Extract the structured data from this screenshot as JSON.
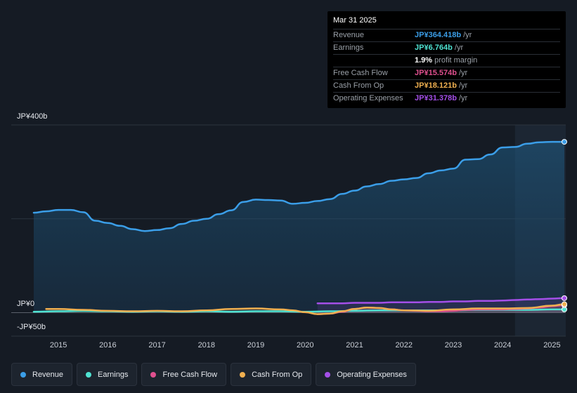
{
  "tooltip": {
    "date": "Mar 31 2025",
    "rows": [
      {
        "label": "Revenue",
        "value": "JP¥364.418b",
        "unit": "/yr",
        "color": "#3b9ee8"
      },
      {
        "label": "Earnings",
        "value": "JP¥6.764b",
        "unit": "/yr",
        "color": "#4fe3d2"
      },
      {
        "label": "",
        "value": "1.9%",
        "unit": "profit margin",
        "color": "#ffffff"
      },
      {
        "label": "Free Cash Flow",
        "value": "JP¥15.574b",
        "unit": "/yr",
        "color": "#e0508f"
      },
      {
        "label": "Cash From Op",
        "value": "JP¥18.121b",
        "unit": "/yr",
        "color": "#f0b050"
      },
      {
        "label": "Operating Expenses",
        "value": "JP¥31.378b",
        "unit": "/yr",
        "color": "#a44fe8"
      }
    ]
  },
  "legend": [
    {
      "label": "Revenue",
      "color": "#3b9ee8"
    },
    {
      "label": "Earnings",
      "color": "#4fe3d2"
    },
    {
      "label": "Free Cash Flow",
      "color": "#e0508f"
    },
    {
      "label": "Cash From Op",
      "color": "#f0b050"
    },
    {
      "label": "Operating Expenses",
      "color": "#a44fe8"
    }
  ],
  "chart_data": {
    "type": "line",
    "ylim": [
      -50,
      400
    ],
    "y_tick_labels": {
      "top": "JP¥400b",
      "zero": "JP¥0",
      "bottom": "-JP¥50b"
    },
    "x_tick_labels": [
      "2015",
      "2016",
      "2017",
      "2018",
      "2019",
      "2020",
      "2021",
      "2022",
      "2023",
      "2024",
      "2025"
    ],
    "x_tick_values": [
      2015,
      2016,
      2017,
      2018,
      2019,
      2020,
      2021,
      2022,
      2023,
      2024,
      2025
    ],
    "xlim": [
      2014.5,
      2025.25
    ],
    "forecast_start": 2024.25,
    "series": [
      {
        "name": "Revenue",
        "color": "#3b9ee8",
        "x": [
          2014.5,
          2014.75,
          2015.0,
          2015.25,
          2015.5,
          2015.75,
          2016.0,
          2016.25,
          2016.5,
          2016.75,
          2017.0,
          2017.25,
          2017.5,
          2017.75,
          2018.0,
          2018.25,
          2018.5,
          2018.75,
          2019.0,
          2019.25,
          2019.5,
          2019.75,
          2020.0,
          2020.25,
          2020.5,
          2020.75,
          2021.0,
          2021.25,
          2021.5,
          2021.75,
          2022.0,
          2022.25,
          2022.5,
          2022.75,
          2023.0,
          2023.25,
          2023.5,
          2023.75,
          2024.0,
          2024.25,
          2024.5,
          2024.75,
          2025.0,
          2025.25
        ],
        "values": [
          213,
          216,
          219,
          219,
          214,
          196,
          191,
          185,
          178,
          174,
          176,
          180,
          189,
          196,
          200,
          210,
          218,
          236,
          241,
          240,
          239,
          232,
          234,
          238,
          242,
          253,
          260,
          269,
          274,
          281,
          284,
          287,
          297,
          303,
          307,
          326,
          327,
          337,
          352,
          353,
          360,
          363,
          364,
          364
        ]
      },
      {
        "name": "Earnings",
        "color": "#4fe3d2",
        "x": [
          2014.5,
          2015.0,
          2015.5,
          2016.0,
          2016.5,
          2017.0,
          2017.5,
          2018.0,
          2018.5,
          2019.0,
          2019.5,
          2020.0,
          2020.5,
          2021.0,
          2021.5,
          2022.0,
          2022.5,
          2023.0,
          2023.5,
          2024.0,
          2024.5,
          2025.0,
          2025.25
        ],
        "values": [
          2,
          3,
          4,
          3,
          2,
          3,
          2,
          3,
          2,
          3,
          3,
          2,
          3,
          4,
          5,
          5,
          5,
          5,
          6,
          6,
          6,
          7,
          7
        ]
      },
      {
        "name": "Free Cash Flow",
        "color": "#e0508f",
        "x": [
          2020.25,
          2020.5,
          2020.75,
          2021.0,
          2021.25,
          2021.5,
          2021.75,
          2022.0,
          2022.25,
          2022.5,
          2022.75,
          2023.0,
          2023.25,
          2023.5,
          2023.75,
          2024.0,
          2024.25,
          2024.5,
          2024.75,
          2025.0,
          2025.25
        ],
        "values": [
          -3,
          -2,
          2,
          8,
          11,
          10,
          7,
          5,
          4,
          3,
          3,
          4,
          6,
          7,
          7,
          7,
          8,
          9,
          11,
          14,
          16
        ]
      },
      {
        "name": "Cash From Op",
        "color": "#f0b050",
        "x": [
          2014.75,
          2015.0,
          2015.5,
          2016.0,
          2016.5,
          2017.0,
          2017.5,
          2018.0,
          2018.5,
          2019.0,
          2019.5,
          2019.75,
          2020.0,
          2020.25,
          2020.5,
          2020.75,
          2021.0,
          2021.25,
          2021.5,
          2021.75,
          2022.0,
          2022.5,
          2023.0,
          2023.5,
          2024.0,
          2024.5,
          2025.0,
          2025.25
        ],
        "values": [
          8,
          8,
          6,
          4,
          3,
          4,
          3,
          5,
          8,
          9,
          7,
          5,
          1,
          -3,
          -2,
          3,
          8,
          11,
          10,
          7,
          5,
          4,
          7,
          9,
          9,
          10,
          15,
          18
        ]
      },
      {
        "name": "Operating Expenses",
        "color": "#a44fe8",
        "x": [
          2020.25,
          2020.5,
          2020.75,
          2021.0,
          2021.25,
          2021.5,
          2021.75,
          2022.0,
          2022.25,
          2022.5,
          2022.75,
          2023.0,
          2023.25,
          2023.5,
          2023.75,
          2024.0,
          2024.25,
          2024.5,
          2024.75,
          2025.0,
          2025.25
        ],
        "values": [
          20,
          20,
          20,
          21,
          21,
          21,
          22,
          22,
          22,
          23,
          23,
          24,
          24,
          25,
          25,
          26,
          27,
          28,
          29,
          30,
          31
        ]
      }
    ]
  }
}
